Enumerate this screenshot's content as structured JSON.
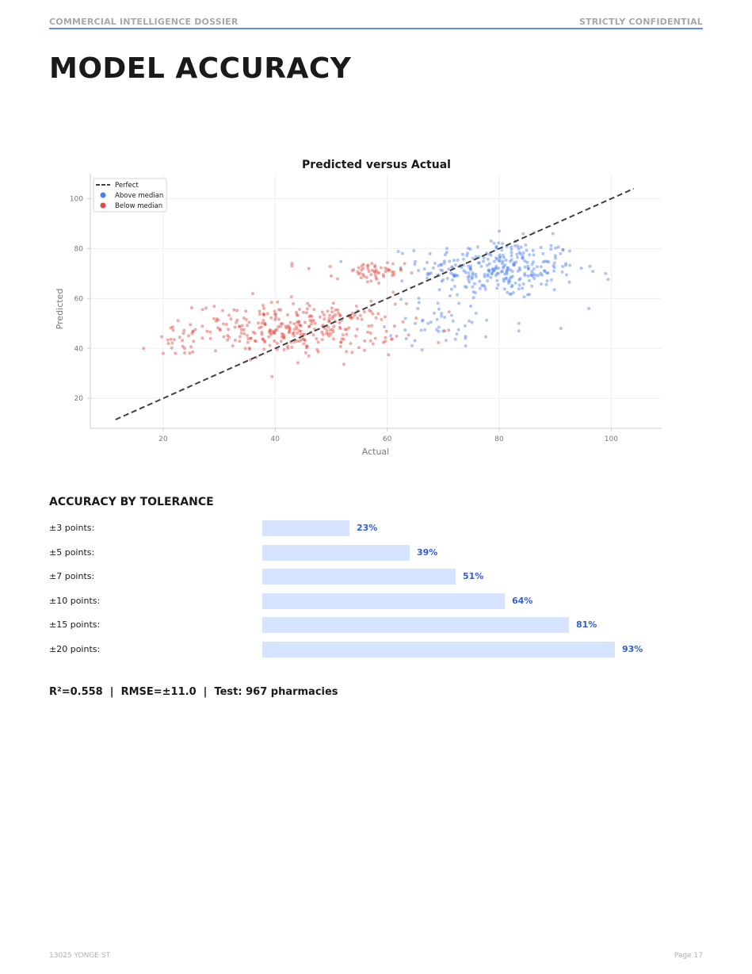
{
  "header": {
    "left": "COMMERCIAL INTELLIGENCE DOSSIER",
    "right": "STRICTLY CONFIDENTIAL"
  },
  "page_title": "MODEL ACCURACY",
  "chart_data": {
    "type": "scatter",
    "title": "Predicted versus Actual",
    "xlabel": "Actual",
    "ylabel": "Predicted",
    "xlim": [
      7,
      109
    ],
    "ylim": [
      8,
      110
    ],
    "xticks": [
      20,
      40,
      60,
      80,
      100
    ],
    "yticks": [
      20,
      40,
      60,
      80,
      100
    ],
    "grid": true,
    "legend_position": "top-left",
    "reference_line": {
      "name": "Perfect",
      "x": [
        11.5,
        104
      ],
      "y": [
        11.5,
        104
      ],
      "style": "dashed",
      "color": "#404040"
    },
    "series": [
      {
        "name": "Above median",
        "color": "#4a7ff0",
        "clusters": [
          {
            "cx": 80,
            "cy": 72,
            "sx": 7,
            "sy": 6,
            "n": 300
          },
          {
            "cx": 70,
            "cy": 51,
            "sx": 5,
            "sy": 5,
            "n": 45
          }
        ],
        "extra_points": [
          [
            99,
            70
          ],
          [
            96,
            56
          ],
          [
            91,
            48
          ],
          [
            74,
            41
          ],
          [
            83.5,
            47
          ],
          [
            83.5,
            50
          ],
          [
            80,
            87
          ]
        ]
      },
      {
        "name": "Below median",
        "color": "#e0483f",
        "clusters": [
          {
            "cx": 44,
            "cy": 48,
            "sx": 9,
            "sy": 5,
            "n": 320
          },
          {
            "cx": 57,
            "cy": 70,
            "sx": 3,
            "sy": 2.5,
            "n": 55
          },
          {
            "cx": 23,
            "cy": 43,
            "sx": 2.5,
            "sy": 3,
            "n": 18
          }
        ],
        "extra_points": [
          [
            16.5,
            40
          ],
          [
            20,
            38
          ],
          [
            36,
            62
          ],
          [
            43,
            74
          ],
          [
            43,
            73
          ],
          [
            46,
            72
          ],
          [
            50,
            69
          ]
        ]
      }
    ]
  },
  "tolerance": {
    "title": "ACCURACY BY TOLERANCE",
    "rows": [
      {
        "label": "±3 points:",
        "pct": 23,
        "value": "23%"
      },
      {
        "label": "±5 points:",
        "pct": 39,
        "value": "39%"
      },
      {
        "label": "±7 points:",
        "pct": 51,
        "value": "51%"
      },
      {
        "label": "±10 points:",
        "pct": 64,
        "value": "64%"
      },
      {
        "label": "±15 points:",
        "pct": 81,
        "value": "81%"
      },
      {
        "label": "±20 points:",
        "pct": 93,
        "value": "93%"
      }
    ]
  },
  "summary": "R²=0.558 | RMSE=±11.0 | Test: 967 pharmacies",
  "footer": {
    "left": "13025 YONGE ST",
    "right": "Page 17"
  }
}
